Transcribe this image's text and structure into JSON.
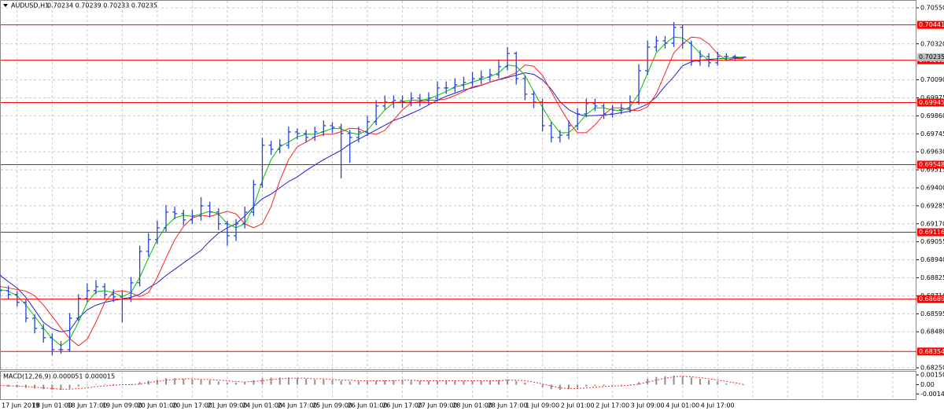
{
  "chart_data": [
    {
      "type": "ohlc",
      "title": "AUDUSD,H1",
      "subtitle": "0.70234 0.70239 0.70233 0.70235",
      "color": "#2346d6",
      "categories": [
        "17 Jun 2019",
        null,
        null,
        null,
        null,
        null,
        "18 Jun 01:00",
        null,
        null,
        null,
        "18 Jun 17:00",
        null,
        null,
        null,
        "19 Jun 09:00",
        null,
        null,
        null,
        "20 Jun 01:00",
        null,
        null,
        null,
        "20 Jun 17:00",
        null,
        null,
        null,
        "21 Jun 09:00",
        null,
        null,
        null,
        "24 Jun 01:00",
        null,
        null,
        null,
        "24 Jun 17:00",
        null,
        null,
        null,
        "25 Jun 09:00",
        null,
        null,
        null,
        "26 Jun 01:00",
        null,
        null,
        null,
        "26 Jun 17:00",
        null,
        null,
        null,
        "27 Jun 09:00",
        null,
        null,
        null,
        "28 Jun 01:00",
        null,
        null,
        null,
        "28 Jun 17:00",
        null,
        null,
        null,
        "1 Jul 09:00",
        null,
        null,
        null,
        "2 Jul 01:00",
        null,
        null,
        null,
        "2 Jul 17:00",
        null,
        null,
        null,
        "3 Jul 09:00",
        null,
        null,
        null,
        "4 Jul 01:00",
        null,
        null,
        null,
        "4 Jul 17:00",
        null,
        null,
        null
      ],
      "open": [
        0.6876,
        0.68743,
        0.68718,
        0.68668,
        0.68567,
        0.68502,
        0.68442,
        0.68366,
        0.68366,
        0.68567,
        0.68693,
        0.68743,
        0.68768,
        0.68718,
        0.68703,
        0.68693,
        0.68793,
        0.68994,
        0.69069,
        0.69144,
        0.69245,
        0.69235,
        0.69195,
        0.6922,
        0.69285,
        0.69245,
        0.6917,
        0.69094,
        0.6917,
        0.69245,
        0.69421,
        0.69672,
        0.69646,
        0.69672,
        0.69757,
        0.69747,
        0.69722,
        0.69757,
        0.69797,
        0.69787,
        0.69747,
        0.69722,
        0.69757,
        0.69822,
        0.69923,
        0.69948,
        0.69958,
        0.69948,
        0.69973,
        0.69958,
        0.69973,
        0.70038,
        0.70038,
        0.70058,
        0.70073,
        0.70098,
        0.70108,
        0.70123,
        0.70174,
        0.70259,
        0.70098,
        0.69998,
        0.69948,
        0.69797,
        0.69722,
        0.69737,
        0.69797,
        0.69872,
        0.69938,
        0.69923,
        0.69872,
        0.69897,
        0.69907,
        0.69948,
        0.70148,
        0.70299,
        0.70339,
        0.70324,
        0.70425,
        0.70324,
        0.70209,
        0.70239,
        0.70199,
        0.70239,
        0.70239,
        0.70234
      ],
      "high": [
        0.6879,
        0.68775,
        0.6874,
        0.6869,
        0.6859,
        0.6853,
        0.6847,
        0.6842,
        0.686,
        0.6872,
        0.6879,
        0.6881,
        0.6879,
        0.6875,
        0.6874,
        0.6883,
        0.6903,
        0.6911,
        0.6919,
        0.6929,
        0.6928,
        0.6926,
        0.6926,
        0.6934,
        0.6931,
        0.6927,
        0.6919,
        0.692,
        0.6928,
        0.6945,
        0.6972,
        0.697,
        0.6971,
        0.6979,
        0.6978,
        0.6977,
        0.6979,
        0.6983,
        0.6982,
        0.6981,
        0.6977,
        0.6979,
        0.6986,
        0.6996,
        0.6999,
        0.6999,
        0.6999,
        0.7001,
        0.7,
        0.7001,
        0.7008,
        0.7008,
        0.701,
        0.7011,
        0.7014,
        0.7015,
        0.7016,
        0.7022,
        0.70299,
        0.7027,
        0.7012,
        0.7002,
        0.6997,
        0.6982,
        0.6977,
        0.6983,
        0.6991,
        0.6997,
        0.6997,
        0.6994,
        0.6993,
        0.6994,
        0.6999,
        0.7019,
        0.7034,
        0.7037,
        0.7037,
        0.7046,
        0.7044,
        0.7034,
        0.7028,
        0.7026,
        0.7027,
        0.7026,
        0.7025,
        0.70239
      ],
      "low": [
        0.6871,
        0.6869,
        0.6864,
        0.6854,
        0.6847,
        0.6841,
        0.6833,
        0.6834,
        0.6835,
        0.6855,
        0.6867,
        0.6872,
        0.6869,
        0.6867,
        0.6854,
        0.6867,
        0.6877,
        0.6896,
        0.6904,
        0.6912,
        0.692,
        0.6916,
        0.6917,
        0.6919,
        0.6921,
        0.6913,
        0.6903,
        0.6906,
        0.6914,
        0.6922,
        0.694,
        0.6961,
        0.6962,
        0.6965,
        0.6971,
        0.6969,
        0.697,
        0.6973,
        0.6975,
        0.6946,
        0.6956,
        0.6969,
        0.6973,
        0.698,
        0.699,
        0.6991,
        0.6991,
        0.6992,
        0.6992,
        0.6993,
        0.6995,
        0.7,
        0.7001,
        0.7003,
        0.7005,
        0.7006,
        0.7008,
        0.701,
        0.7015,
        0.7006,
        0.6996,
        0.6991,
        0.6976,
        0.6969,
        0.6969,
        0.6971,
        0.6977,
        0.6985,
        0.6989,
        0.6984,
        0.6985,
        0.6987,
        0.6988,
        0.6993,
        0.7012,
        0.7027,
        0.7029,
        0.703,
        0.7029,
        0.7018,
        0.7018,
        0.7017,
        0.7018,
        0.7021,
        0.7021,
        0.70233
      ],
      "close": [
        0.68743,
        0.68718,
        0.68668,
        0.68567,
        0.68502,
        0.68442,
        0.68366,
        0.68366,
        0.68567,
        0.68693,
        0.68743,
        0.68768,
        0.68718,
        0.68703,
        0.68693,
        0.68793,
        0.68994,
        0.69069,
        0.69144,
        0.69245,
        0.69235,
        0.69195,
        0.6922,
        0.69285,
        0.69245,
        0.6917,
        0.69094,
        0.6917,
        0.69245,
        0.69421,
        0.69672,
        0.69646,
        0.69672,
        0.69757,
        0.69747,
        0.69722,
        0.69757,
        0.69797,
        0.69787,
        0.69747,
        0.69722,
        0.69757,
        0.69822,
        0.69923,
        0.69948,
        0.69958,
        0.69948,
        0.69973,
        0.69958,
        0.69973,
        0.70038,
        0.70038,
        0.70058,
        0.70073,
        0.70098,
        0.70108,
        0.70123,
        0.70174,
        0.70259,
        0.70098,
        0.69998,
        0.69948,
        0.69797,
        0.69722,
        0.69737,
        0.69797,
        0.69872,
        0.69938,
        0.69923,
        0.69872,
        0.69897,
        0.69907,
        0.69948,
        0.70148,
        0.70299,
        0.70339,
        0.70324,
        0.70425,
        0.70324,
        0.70209,
        0.70239,
        0.70199,
        0.70239,
        0.70239,
        0.70234,
        0.70235
      ],
      "lines": [
        {
          "color": "#2222cc",
          "values": [
            0.68844,
            0.688,
            0.6876,
            0.687,
            0.6862,
            0.6854,
            0.685,
            0.6848,
            0.6849,
            0.68567,
            0.6862,
            0.6865,
            0.68668,
            0.6868,
            0.6869,
            0.687,
            0.6872,
            0.6876,
            0.68793,
            0.6884,
            0.6888,
            0.6892,
            0.6896,
            0.69,
            0.6906,
            0.6911,
            0.69144,
            0.6917,
            0.6922,
            0.6928,
            0.6933,
            0.6936,
            0.694,
            0.6944,
            0.6947,
            0.6951,
            0.69546,
            0.6958,
            0.6961,
            0.6964,
            0.6968,
            0.6971,
            0.6974,
            0.6977,
            0.698,
            0.6983,
            0.6985,
            0.69875,
            0.699,
            0.6993,
            0.6996,
            0.69985,
            0.70005,
            0.70025,
            0.70038,
            0.70055,
            0.70075,
            0.7009,
            0.70105,
            0.7012,
            0.70135,
            0.70125,
            0.7009,
            0.7003,
            0.6995,
            0.699,
            0.6987,
            0.6986,
            0.69862,
            0.69865,
            0.6987,
            0.6988,
            0.6989,
            0.6991,
            0.69935,
            0.6998,
            0.7005,
            0.7011,
            0.7018,
            0.70205,
            0.70215,
            0.7022,
            0.70225,
            0.70228,
            0.7023,
            0.70232
          ]
        },
        {
          "color": "#ff2020",
          "values": [
            0.6877,
            0.6876,
            0.6875,
            0.6874,
            0.6871,
            0.68651,
            0.68579,
            0.68504,
            0.68437,
            0.68391,
            0.68433,
            0.68542,
            0.68668,
            0.68735,
            0.68743,
            0.6873,
            0.68705,
            0.6873,
            0.68827,
            0.68952,
            0.69069,
            0.69153,
            0.69208,
            0.69225,
            0.69217,
            0.69233,
            0.6925,
            0.69233,
            0.6917,
            0.69145,
            0.6917,
            0.69279,
            0.69446,
            0.6958,
            0.69663,
            0.69692,
            0.69725,
            0.69742,
            0.69742,
            0.69759,
            0.6978,
            0.69777,
            0.69752,
            0.69742,
            0.69767,
            0.69834,
            0.69898,
            0.69943,
            0.69951,
            0.6996,
            0.6996,
            0.69968,
            0.6999,
            0.70016,
            0.70045,
            0.70056,
            0.70076,
            0.70093,
            0.7011,
            0.70135,
            0.70185,
            0.70177,
            0.70118,
            0.70015,
            0.69914,
            0.69822,
            0.69752,
            0.69752,
            0.69802,
            0.69869,
            0.69911,
            0.69911,
            0.69897,
            0.69892,
            0.69917,
            0.70001,
            0.70132,
            0.70262,
            0.70321,
            0.70363,
            0.70358,
            0.70319,
            0.70257,
            0.70216,
            0.70226,
            0.70226
          ]
        },
        {
          "color": "#00c000",
          "values": [
            0.6875,
            0.6874,
            0.6871,
            0.68651,
            0.68579,
            0.68504,
            0.68437,
            0.68391,
            0.68433,
            0.68542,
            0.68668,
            0.68735,
            0.68743,
            0.6873,
            0.68705,
            0.6873,
            0.68827,
            0.68952,
            0.69069,
            0.69153,
            0.69208,
            0.69225,
            0.69217,
            0.69233,
            0.6925,
            0.69233,
            0.6917,
            0.69145,
            0.6917,
            0.69279,
            0.69446,
            0.6958,
            0.69663,
            0.69692,
            0.69725,
            0.69742,
            0.69742,
            0.69759,
            0.6978,
            0.69777,
            0.69752,
            0.69742,
            0.69767,
            0.69834,
            0.69898,
            0.69943,
            0.69951,
            0.6996,
            0.6996,
            0.69968,
            0.6999,
            0.70016,
            0.70045,
            0.70056,
            0.70076,
            0.70093,
            0.7011,
            0.70135,
            0.70185,
            0.70177,
            0.70118,
            0.70015,
            0.69914,
            0.69822,
            0.69752,
            0.69752,
            0.69802,
            0.69869,
            0.69911,
            0.69911,
            0.69897,
            0.69892,
            0.69917,
            0.70001,
            0.70132,
            0.70262,
            0.70321,
            0.70363,
            0.70358,
            0.70319,
            0.70257,
            0.70216,
            0.70226,
            0.70226,
            0.70236,
            0.70234
          ]
        }
      ],
      "levels": [
        0.70441,
        0.70215,
        0.69945,
        0.69548,
        0.69116,
        0.68689,
        0.68354
      ],
      "level_color": "#ff0000",
      "last_price": 0.70235,
      "ylim": [
        0.6824,
        0.706
      ],
      "yticks": [
        {
          "value": 0.7055,
          "label": "0.70550"
        },
        {
          "value": 0.7032,
          "label": "0.70320"
        },
        {
          "value": 0.7009,
          "label": "0.70090"
        },
        0.69975,
        {
          "value": 0.6986,
          "label": "0.69860"
        },
        0.69745,
        {
          "value": 0.6963,
          "label": "0.69630"
        },
        0.69515,
        {
          "value": 0.694,
          "label": "0.69400"
        },
        0.69285,
        {
          "value": 0.6917,
          "label": "0.69170"
        },
        0.69055,
        {
          "value": 0.6894,
          "label": "0.68940"
        },
        0.68825,
        {
          "value": 0.6871,
          "label": "0.68710"
        },
        0.68595,
        {
          "value": 0.6848,
          "label": "0.68480"
        },
        {
          "value": 0.6825,
          "label": "0.68250"
        }
      ],
      "grid": true
    },
    {
      "type": "macd",
      "title": "MACD(12,26,9) 0.000051 0.000015",
      "color": "#909090",
      "signal_color": "#ff2020",
      "values": [
        -0.0002,
        -0.0003,
        -0.0004,
        -0.0005,
        -0.0006,
        -0.0007,
        -0.0008,
        -0.0008,
        -0.0006,
        -0.0003,
        -0.0001,
        0.0001,
        0.0001,
        0.0001,
        0.0,
        0.0001,
        0.0004,
        0.0006,
        0.0008,
        0.001,
        0.001,
        0.0009,
        0.0008,
        0.0008,
        0.0007,
        0.0005,
        0.0003,
        0.0003,
        0.0004,
        0.0007,
        0.001,
        0.0011,
        0.0011,
        0.0011,
        0.001,
        0.0009,
        0.0008,
        0.0008,
        0.0007,
        0.0006,
        0.0005,
        0.0005,
        0.0005,
        0.0006,
        0.0007,
        0.0007,
        0.0007,
        0.0006,
        0.0006,
        0.0006,
        0.0006,
        0.0006,
        0.0006,
        0.0006,
        0.0006,
        0.0006,
        0.0006,
        0.0007,
        0.0008,
        0.0006,
        0.0003,
        0.0,
        -0.0004,
        -0.0007,
        -0.0008,
        -0.0007,
        -0.0005,
        -0.0003,
        -0.0002,
        -0.0002,
        -0.0001,
        -0.0001,
        0.0,
        0.0004,
        0.0009,
        0.0012,
        0.0013,
        0.0014,
        0.0013,
        0.0011,
        0.0009,
        0.0007,
        0.0005,
        0.0002,
        0.0001,
        5.1e-05
      ],
      "signal": [
        -0.0001,
        -0.0002,
        -0.0002,
        -0.0003,
        -0.0004,
        -0.0005,
        -0.0006,
        -0.0007,
        -0.0007,
        -0.0006,
        -0.0005,
        -0.0003,
        -0.0002,
        -0.0001,
        0.0,
        0.0,
        0.0001,
        0.0003,
        0.0005,
        0.0007,
        0.0008,
        0.0009,
        0.0009,
        0.0008,
        0.0008,
        0.0007,
        0.0006,
        0.0005,
        0.0004,
        0.0005,
        0.0006,
        0.0008,
        0.0009,
        0.001,
        0.001,
        0.001,
        0.0009,
        0.0009,
        0.0008,
        0.0007,
        0.0007,
        0.0006,
        0.0006,
        0.0006,
        0.0006,
        0.0006,
        0.0007,
        0.0007,
        0.0006,
        0.0006,
        0.0006,
        0.0006,
        0.0006,
        0.0006,
        0.0006,
        0.0006,
        0.0006,
        0.0006,
        0.0007,
        0.0007,
        0.0006,
        0.0004,
        0.0001,
        -0.0002,
        -0.0005,
        -0.0006,
        -0.0006,
        -0.0005,
        -0.0004,
        -0.0003,
        -0.0002,
        -0.0002,
        -0.0001,
        0.0001,
        0.0004,
        0.0007,
        0.001,
        0.0012,
        0.0013,
        0.0012,
        0.0011,
        0.0009,
        0.0007,
        0.0005,
        0.0003,
        1.5e-05
      ],
      "ylim": [
        -0.00225,
        0.002
      ],
      "yticks": [
        0.001505,
        {
          "value": 0,
          "label": "0.00"
        },
        -0.001434
      ]
    }
  ]
}
